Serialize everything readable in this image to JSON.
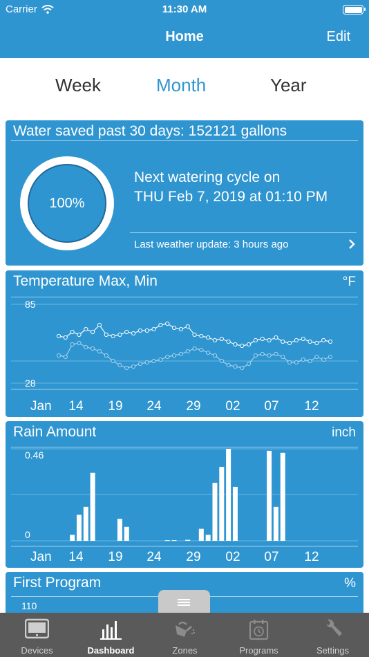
{
  "status_bar": {
    "carrier": "Carrier",
    "time": "11:30 AM"
  },
  "nav": {
    "title": "Home",
    "edit_label": "Edit"
  },
  "segments": [
    {
      "label": "Week",
      "active": false
    },
    {
      "label": "Month",
      "active": true
    },
    {
      "label": "Year",
      "active": false
    }
  ],
  "water_card": {
    "title": "Water saved past 30 days:  152121 gallons",
    "percent_label": "100%",
    "percent_value": 1.0,
    "next_cycle_line1": "Next watering cycle on",
    "next_cycle_line2": "THU Feb 7, 2019 at 01:10 PM",
    "weather_update": "Last weather update: 3 hours ago"
  },
  "temperature_card": {
    "title": "Temperature Max, Min",
    "unit": "°F"
  },
  "rain_card": {
    "title": "Rain Amount",
    "unit": "inch"
  },
  "program_card": {
    "title": "First Program",
    "unit": "%",
    "ymax_label": "110"
  },
  "tabbar": [
    {
      "label": "Devices",
      "icon": "devices-icon",
      "active": false
    },
    {
      "label": "Dashboard",
      "icon": "dashboard-bar-chart-icon",
      "active": true
    },
    {
      "label": "Zones",
      "icon": "watering-can-icon",
      "active": false
    },
    {
      "label": "Programs",
      "icon": "calendar-clock-icon",
      "active": false
    },
    {
      "label": "Settings",
      "icon": "wrench-icon",
      "active": false
    }
  ],
  "chart_data": [
    {
      "type": "line",
      "title": "Temperature Max, Min",
      "ylabel": "°F",
      "ylim": [
        28,
        85
      ],
      "ytick_labels": [
        "85",
        "28"
      ],
      "xtick_labels": [
        "Jan",
        "14",
        "19",
        "24",
        "29",
        "02",
        "07",
        "12"
      ],
      "x": [
        10,
        11,
        12,
        13,
        14,
        15,
        16,
        17,
        18,
        19,
        20,
        21,
        22,
        23,
        24,
        25,
        26,
        27,
        28,
        29,
        30,
        31,
        32,
        33,
        34,
        35,
        36,
        37,
        38,
        39,
        40,
        41,
        42,
        43,
        44,
        45,
        46,
        47,
        48,
        49,
        50
      ],
      "series": [
        {
          "name": "",
          "values": [
            62,
            61,
            65,
            63,
            67,
            65,
            70,
            63,
            62,
            63,
            65,
            64,
            66,
            66,
            67,
            70,
            71,
            68,
            67,
            69,
            63,
            62,
            61,
            59,
            60,
            58,
            56,
            55,
            56,
            59,
            60,
            59,
            61,
            58,
            57,
            59,
            60,
            58,
            57,
            59,
            58
          ]
        },
        {
          "name": "",
          "values": [
            48,
            47,
            56,
            57,
            54,
            53,
            51,
            48,
            44,
            41,
            39,
            40,
            42,
            43,
            44,
            45,
            47,
            48,
            49,
            51,
            53,
            52,
            50,
            48,
            44,
            41,
            40,
            39,
            42,
            48,
            49,
            48,
            49,
            47,
            43,
            43,
            45,
            44,
            47,
            45,
            47
          ]
        }
      ]
    },
    {
      "type": "bar",
      "title": "Rain Amount",
      "ylabel": "inch",
      "ylim": [
        0,
        0.46
      ],
      "ytick_labels": [
        "0.46",
        "0"
      ],
      "xtick_labels": [
        "Jan",
        "14",
        "19",
        "24",
        "29",
        "02",
        "07",
        "12"
      ],
      "x": [
        10,
        11,
        12,
        13,
        14,
        15,
        16,
        17,
        18,
        19,
        20,
        21,
        22,
        23,
        24,
        25,
        26,
        27,
        28,
        29,
        30,
        31,
        32,
        33,
        34,
        35,
        36,
        37,
        38,
        39,
        40,
        41,
        42,
        43,
        44,
        45,
        46,
        47,
        48,
        49,
        50
      ],
      "values": [
        0,
        0,
        0.03,
        0.13,
        0.17,
        0.34,
        0,
        0,
        0,
        0.11,
        0.07,
        0,
        0,
        0,
        0,
        0,
        0.003,
        0.003,
        0,
        0.005,
        0,
        0.06,
        0.03,
        0.29,
        0.37,
        0.46,
        0.27,
        0,
        0,
        0,
        0,
        0.45,
        0.17,
        0.44,
        0,
        0,
        0,
        0,
        0,
        0,
        0
      ]
    },
    {
      "type": "bar",
      "title": "First Program",
      "ylabel": "%",
      "ytick_labels": [
        "110"
      ],
      "values": []
    }
  ]
}
